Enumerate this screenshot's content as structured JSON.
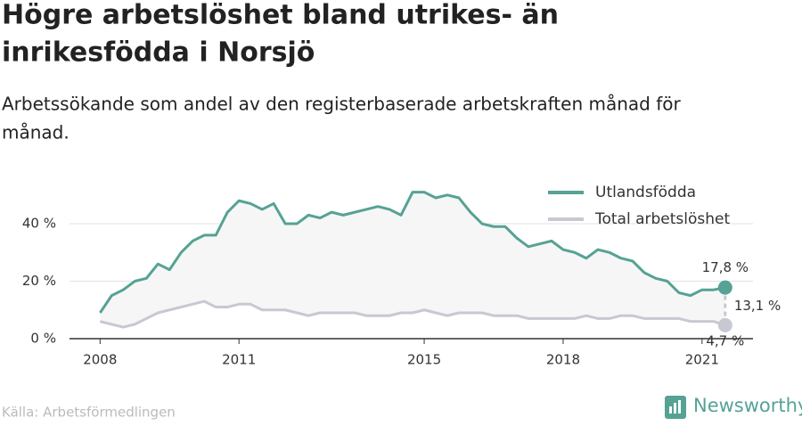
{
  "chart_data": {
    "type": "line",
    "title": [
      "Högre arbetslöshet bland utrikes- än",
      "inrikesfödda i Norsjö"
    ],
    "subtitle": [
      "Arbetssökande som andel av den registerbaserade arbetskraften månad för",
      "månad."
    ],
    "source": "Källa: Arbetsförmedlingen",
    "brand": "Newsworthy",
    "x": [
      2008,
      2008.25,
      2008.5,
      2008.75,
      2009,
      2009.25,
      2009.5,
      2009.75,
      2010,
      2010.25,
      2010.5,
      2010.75,
      2011,
      2011.25,
      2011.5,
      2011.75,
      2012,
      2012.25,
      2012.5,
      2012.75,
      2013,
      2013.25,
      2013.5,
      2013.75,
      2014,
      2014.25,
      2014.5,
      2014.75,
      2015,
      2015.25,
      2015.5,
      2015.75,
      2016,
      2016.25,
      2016.5,
      2016.75,
      2017,
      2017.25,
      2017.5,
      2017.75,
      2018,
      2018.25,
      2018.5,
      2018.75,
      2019,
      2019.25,
      2019.5,
      2019.75,
      2020,
      2020.25,
      2020.5,
      2020.75,
      2021,
      2021.25,
      2021.5
    ],
    "series": [
      {
        "name": "Utlandsfödda",
        "color": "#56a295",
        "end_label": "17,8 %",
        "values": [
          9,
          15,
          17,
          20,
          21,
          26,
          24,
          30,
          34,
          36,
          36,
          44,
          48,
          47,
          45,
          47,
          40,
          40,
          43,
          42,
          44,
          43,
          44,
          45,
          46,
          45,
          43,
          51,
          51,
          49,
          50,
          49,
          44,
          40,
          39,
          39,
          35,
          32,
          33,
          34,
          31,
          30,
          28,
          31,
          30,
          28,
          27,
          23,
          21,
          20,
          16,
          15,
          17,
          17,
          17.8
        ]
      },
      {
        "name": "Total arbetslöshet",
        "color": "#c8c8d2",
        "end_label": "4,7 %",
        "values": [
          6,
          5,
          4,
          5,
          7,
          9,
          10,
          11,
          12,
          13,
          11,
          11,
          12,
          12,
          10,
          10,
          10,
          9,
          8,
          9,
          9,
          9,
          9,
          8,
          8,
          8,
          9,
          9,
          10,
          9,
          8,
          9,
          9,
          9,
          8,
          8,
          8,
          7,
          7,
          7,
          7,
          7,
          8,
          7,
          7,
          8,
          8,
          7,
          7,
          7,
          7,
          6,
          6,
          6,
          4.7
        ]
      }
    ],
    "difference_label": "13,1 %",
    "xlim": [
      2007.34,
      2022.1
    ],
    "xticks": [
      2008,
      2011,
      2015,
      2018,
      2021
    ],
    "ylim": [
      0,
      58
    ],
    "yticks": [
      {
        "value": 0,
        "label": "0 %"
      },
      {
        "value": 20,
        "label": "20 %"
      },
      {
        "value": 40,
        "label": "40 %"
      }
    ],
    "grid": true,
    "legend": "top-right"
  }
}
